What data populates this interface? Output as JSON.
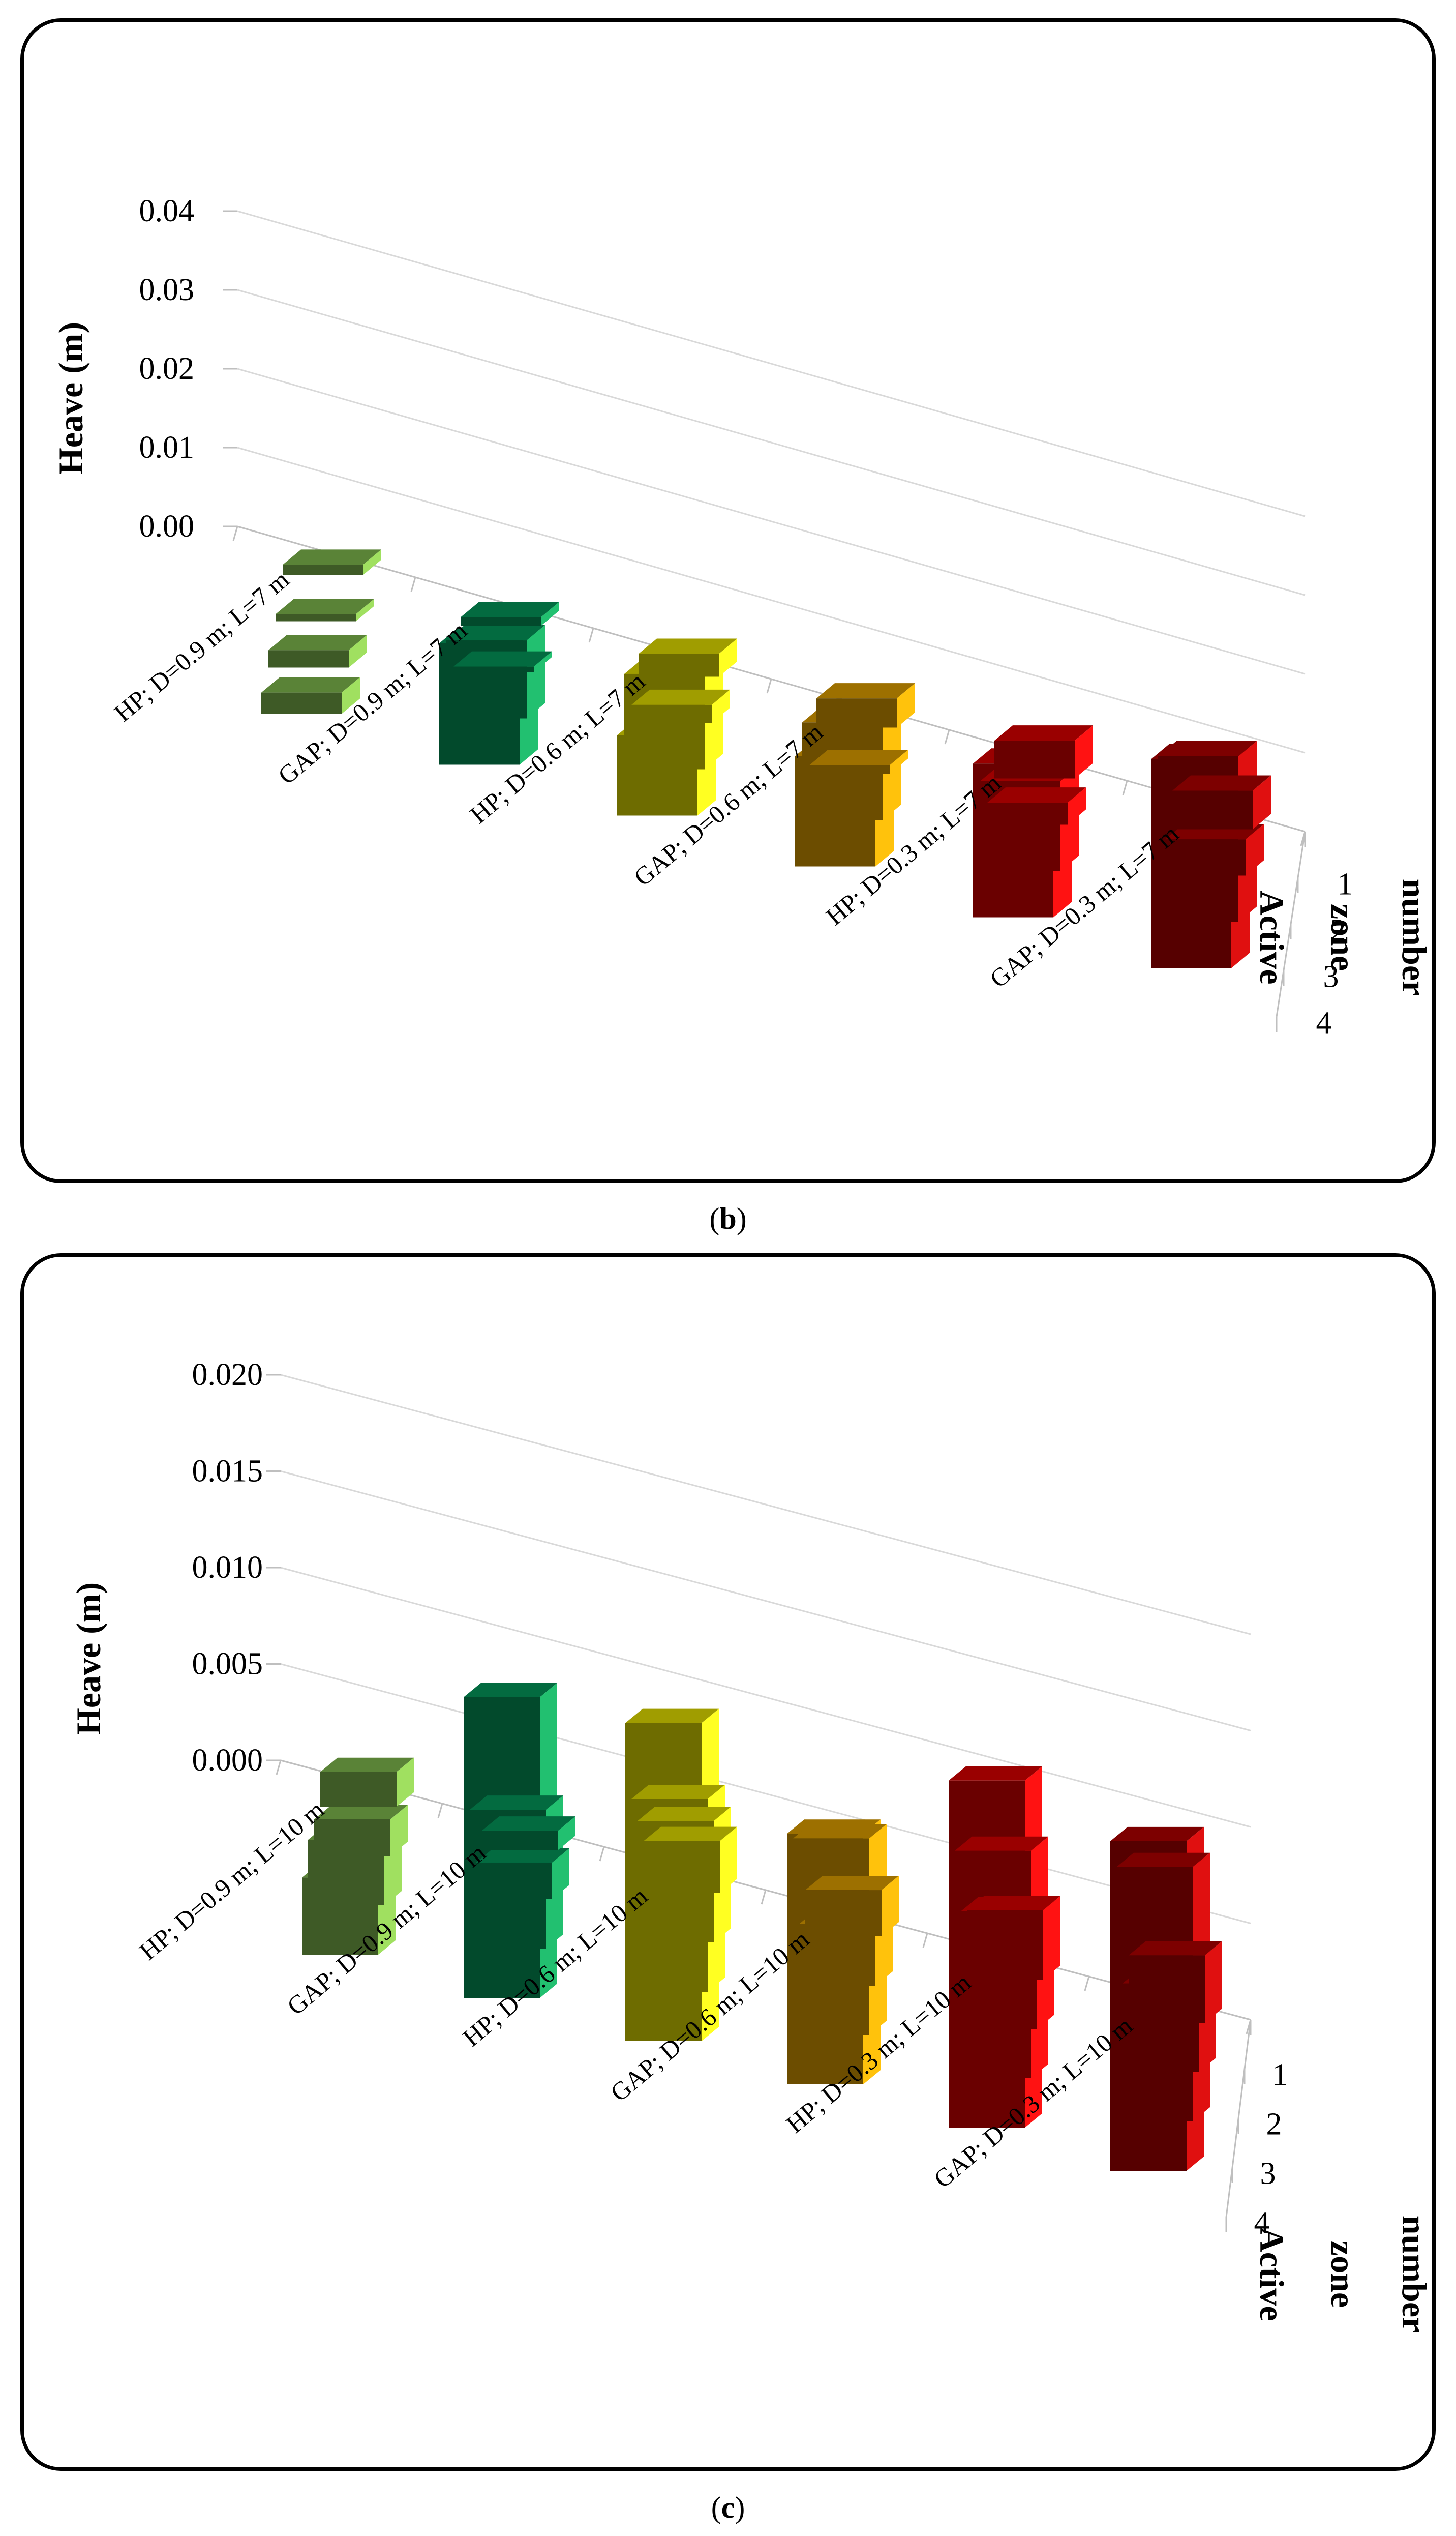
{
  "colors": {
    "hp09": "#3e5a26",
    "gap09": "#024a2c",
    "hp06": "#6e6c00",
    "gap06": "#6c4d00",
    "hp03": "#6a0000",
    "gap03": "#560000",
    "side_hp09": "#a0e060",
    "side_gap09": "#22c070",
    "side_hp06": "#ffff22",
    "side_gap06": "#ffc20c",
    "side_hp03": "#ff1212",
    "side_gap03": "#e01010"
  },
  "captions": {
    "b_open": "(",
    "b_letter": "b",
    "b_close": ")",
    "c_open": "(",
    "c_letter": "c",
    "c_close": ")"
  },
  "chart_data": [
    {
      "type": "bar",
      "panel": "b",
      "ylabel": "Heave (m)",
      "ylim": [
        0,
        0.04
      ],
      "y_ticks": [
        "0.00",
        "0.01",
        "0.02",
        "0.03",
        "0.04"
      ],
      "z_axis_title": "Active zone number",
      "z_categories": [
        "1",
        "2",
        "3",
        "4"
      ],
      "categories": [
        "HP; D=0.9 m; L=7 m",
        "GAP; D=0.9 m; L=7 m",
        "HP; D=0.6 m; L=7 m",
        "GAP; D=0.6 m; L=7 m",
        "HP; D=0.3 m; L=7 m",
        "GAP; D=0.3 m; L=7 m"
      ],
      "series": [
        {
          "name": "Active zone 1",
          "values": [
            0.0013,
            0.0011,
            0.0029,
            0.0037,
            0.0048,
            0.0049
          ]
        },
        {
          "name": "Active zone 2",
          "values": [
            0.0009,
            0.0007,
            0.0023,
            0.0011,
            0.0028,
            0.0046
          ]
        },
        {
          "name": "Active zone 3",
          "values": [
            0.0022,
            0.0099,
            0.0121,
            0.0124,
            0.0114,
            0.021
          ]
        },
        {
          "name": "Active zone 4",
          "values": [
            0.0027,
            0.0154,
            0.0102,
            0.014,
            0.0195,
            0.0265
          ]
        }
      ]
    },
    {
      "type": "bar",
      "panel": "c",
      "ylabel": "Heave (m)",
      "ylim": [
        0,
        0.02
      ],
      "y_ticks": [
        "0.000",
        "0.005",
        "0.010",
        "0.015",
        "0.020"
      ],
      "z_axis_title": "Active zone number",
      "z_categories": [
        "1",
        "2",
        "3",
        "4"
      ],
      "categories": [
        "HP; D=0.9 m; L=10 m",
        "GAP; D=0.9 m; L=10 m",
        "HP; D=0.6 m; L=10 m",
        "GAP; D=0.6 m; L=10 m",
        "HP; D=0.3 m; L=10 m",
        "GAP; D=0.3 m; L=10 m"
      ],
      "series": [
        {
          "name": "Active zone 1",
          "values": [
            0.0018,
            0.001,
            0.0027,
            0.0024,
            0.0036,
            0.0035
          ]
        },
        {
          "name": "Active zone 2",
          "values": [
            0.0019,
            0.0019,
            0.0063,
            0.0032,
            0.0061,
            0.0046
          ]
        },
        {
          "name": "Active zone 3",
          "values": [
            0.0034,
            0.0072,
            0.01,
            0.0102,
            0.0118,
            0.0132
          ]
        },
        {
          "name": "Active zone 4",
          "values": [
            0.004,
            0.0156,
            0.0165,
            0.013,
            0.018,
            0.0171
          ]
        }
      ]
    }
  ]
}
